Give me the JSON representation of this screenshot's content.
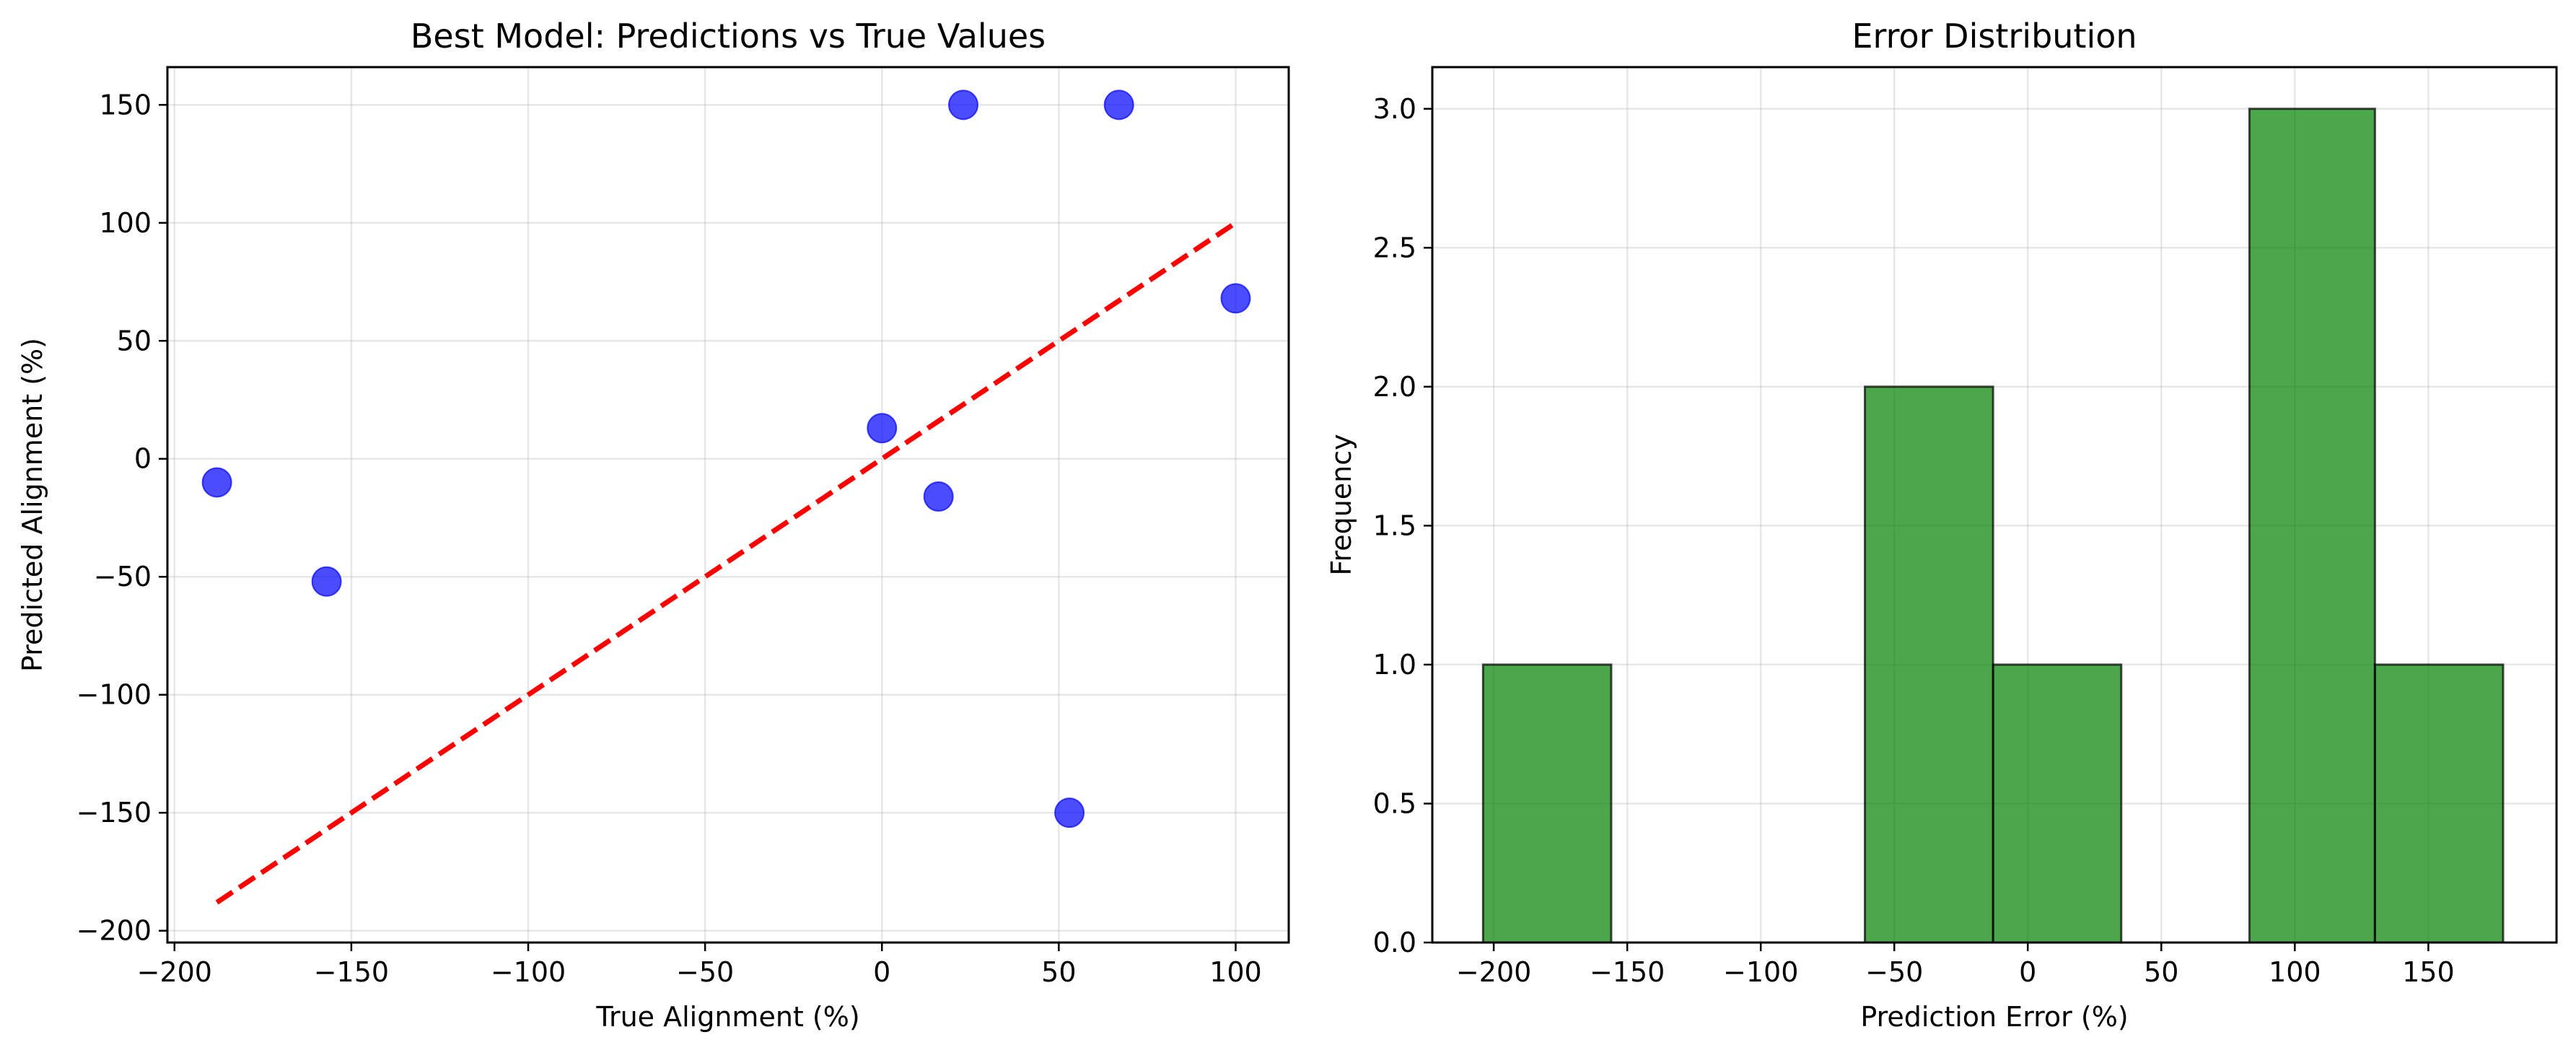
{
  "chart_data": [
    {
      "type": "scatter",
      "title": "Best Model: Predictions vs True Values",
      "xlabel": "True Alignment (%)",
      "ylabel": "Predicted Alignment (%)",
      "xlim": [
        -202,
        115
      ],
      "ylim": [
        -205,
        166
      ],
      "xticks": [
        -200,
        -150,
        -100,
        -50,
        0,
        50,
        100
      ],
      "yticks": [
        -200,
        -150,
        -100,
        -50,
        0,
        50,
        100,
        150
      ],
      "xtick_labels": [
        "−200",
        "−150",
        "−100",
        "−50",
        "0",
        "50",
        "100"
      ],
      "ytick_labels": [
        "−200",
        "−150",
        "−100",
        "−50",
        "0",
        "50",
        "100",
        "150"
      ],
      "grid": true,
      "points": [
        {
          "x": -188,
          "y": -10
        },
        {
          "x": -157,
          "y": -52
        },
        {
          "x": 0,
          "y": 13
        },
        {
          "x": 16,
          "y": -16
        },
        {
          "x": 23,
          "y": 150
        },
        {
          "x": 53,
          "y": -150
        },
        {
          "x": 67,
          "y": 150
        },
        {
          "x": 100,
          "y": 68
        }
      ],
      "reference_line": {
        "x": [
          -188,
          100
        ],
        "y": [
          -188,
          100
        ],
        "style": "dashed",
        "color": "#ff0000"
      },
      "point_color": "#0000ff",
      "point_alpha": 0.7
    },
    {
      "type": "bar",
      "subtype": "histogram",
      "title": "Error Distribution",
      "xlabel": "Prediction Error (%)",
      "ylabel": "Frequency",
      "xlim": [
        -223,
        198
      ],
      "ylim": [
        0,
        3.15
      ],
      "xticks": [
        -200,
        -150,
        -100,
        -50,
        0,
        50,
        100,
        150
      ],
      "yticks": [
        0.0,
        0.5,
        1.0,
        1.5,
        2.0,
        2.5,
        3.0
      ],
      "xtick_labels": [
        "−200",
        "−150",
        "−100",
        "−50",
        "0",
        "50",
        "100",
        "150"
      ],
      "ytick_labels": [
        "0.0",
        "0.5",
        "1.0",
        "1.5",
        "2.0",
        "2.5",
        "3.0"
      ],
      "grid": true,
      "bins": [
        {
          "x0": -204,
          "x1": -156,
          "count": 1
        },
        {
          "x0": -156,
          "x1": -108,
          "count": 0
        },
        {
          "x0": -108,
          "x1": -61,
          "count": 0
        },
        {
          "x0": -61,
          "x1": -13,
          "count": 2
        },
        {
          "x0": -13,
          "x1": 35,
          "count": 1
        },
        {
          "x0": 35,
          "x1": 83,
          "count": 0
        },
        {
          "x0": 83,
          "x1": 130,
          "count": 3
        },
        {
          "x0": 130,
          "x1": 178,
          "count": 1
        }
      ],
      "bar_color": "#008000",
      "bar_alpha": 0.7,
      "edge_color": "#000000"
    }
  ]
}
